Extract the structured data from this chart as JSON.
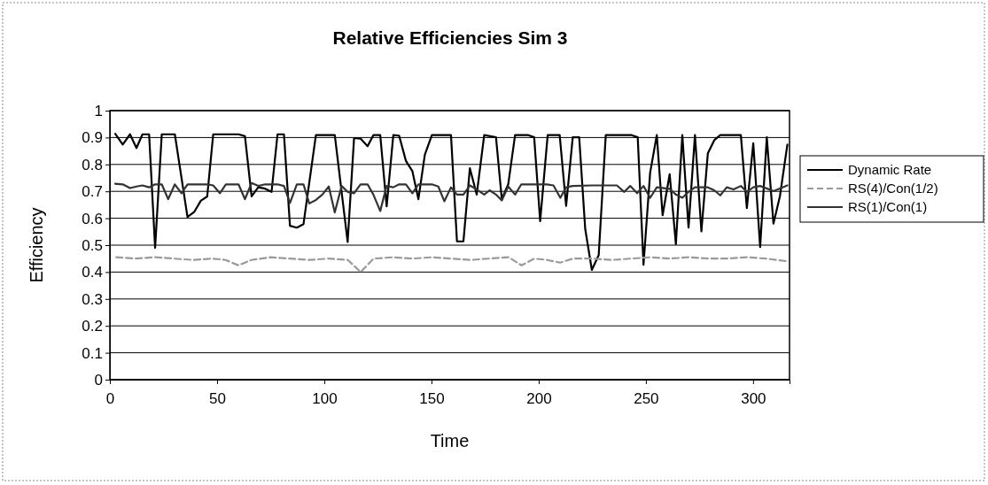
{
  "chart_data": {
    "type": "line",
    "title": "Relative Efficiencies Sim 3",
    "xlabel": "Time",
    "ylabel": "Efficiency",
    "xlim": [
      0,
      317
    ],
    "xticks": [
      0,
      50,
      100,
      150,
      200,
      250,
      300
    ],
    "ylim": [
      0,
      1
    ],
    "yticks": [
      0,
      0.1,
      0.2,
      0.3,
      0.4,
      0.5,
      0.6,
      0.7,
      0.8,
      0.9,
      1
    ],
    "grid": "y",
    "legend": "right",
    "marker": "none",
    "series": [
      {
        "name": "Dynamic Rate",
        "color": "#000000",
        "line_style": "solid",
        "x": [
          2.5,
          6.0,
          9.4,
          12.4,
          15.2,
          18.3,
          21.1,
          24.2,
          30.3,
          36.2,
          39.4,
          42.4,
          45.4,
          48.2,
          60.0,
          63.0,
          66.1,
          69.2,
          72.4,
          75.4,
          78.2,
          81.2,
          84.0,
          87.2,
          90.3,
          96.1,
          104.9,
          110.9,
          113.9,
          116.9,
          120.2,
          122.9,
          126.1,
          129.1,
          132.2,
          134.9,
          138.1,
          141.1,
          143.9,
          146.9,
          150.2,
          159.1,
          161.9,
          164.9,
          167.9,
          171.1,
          174.6,
          180.1,
          182.8,
          185.8,
          189.0,
          195.2,
          197.9,
          200.7,
          204.2,
          209.8,
          212.8,
          215.9,
          218.9,
          221.7,
          224.8,
          228.0,
          231.3,
          243.4,
          246.2,
          248.9,
          252.0,
          255.1,
          257.8,
          261.1,
          264.0,
          267.0,
          269.9,
          272.9,
          275.9,
          278.9,
          281.9,
          284.7,
          294.3,
          297.1,
          300.1,
          303.3,
          306.4,
          309.5,
          312.5,
          316.0
        ],
        "values": [
          0.914,
          0.874,
          0.912,
          0.861,
          0.912,
          0.912,
          0.49,
          0.912,
          0.912,
          0.605,
          0.624,
          0.665,
          0.681,
          0.912,
          0.912,
          0.905,
          0.681,
          0.715,
          0.71,
          0.698,
          0.912,
          0.912,
          0.572,
          0.565,
          0.578,
          0.909,
          0.909,
          0.512,
          0.898,
          0.896,
          0.868,
          0.909,
          0.909,
          0.644,
          0.909,
          0.907,
          0.813,
          0.775,
          0.671,
          0.836,
          0.909,
          0.909,
          0.514,
          0.514,
          0.786,
          0.688,
          0.909,
          0.901,
          0.671,
          0.726,
          0.909,
          0.909,
          0.901,
          0.589,
          0.909,
          0.909,
          0.646,
          0.901,
          0.901,
          0.561,
          0.408,
          0.463,
          0.909,
          0.909,
          0.901,
          0.427,
          0.77,
          0.909,
          0.611,
          0.764,
          0.504,
          0.909,
          0.565,
          0.909,
          0.551,
          0.841,
          0.89,
          0.909,
          0.909,
          0.638,
          0.879,
          0.493,
          0.901,
          0.58,
          0.681,
          0.874
        ]
      },
      {
        "name": "RS(4)/Con(1/2)",
        "color": "#9a9a9a",
        "line_style": "dashed",
        "x": [
          3,
          12,
          21,
          30,
          39,
          48,
          54,
          60,
          66,
          75,
          84,
          93,
          102,
          111,
          117,
          123,
          132,
          141,
          150,
          159,
          168,
          177,
          186,
          192,
          198,
          204,
          210,
          216,
          225,
          234,
          243,
          252,
          261,
          270,
          279,
          288,
          297,
          306,
          316
        ],
        "values": [
          0.455,
          0.45,
          0.455,
          0.45,
          0.445,
          0.45,
          0.445,
          0.425,
          0.445,
          0.455,
          0.45,
          0.445,
          0.45,
          0.445,
          0.4,
          0.45,
          0.455,
          0.45,
          0.455,
          0.45,
          0.445,
          0.45,
          0.455,
          0.425,
          0.45,
          0.445,
          0.435,
          0.45,
          0.45,
          0.445,
          0.45,
          0.455,
          0.45,
          0.455,
          0.45,
          0.45,
          0.455,
          0.45,
          0.44
        ]
      },
      {
        "name": "RS(1)/Con(1)",
        "color": "#333333",
        "line_style": "solid",
        "x": [
          2.5,
          6.0,
          9.4,
          12.4,
          15.2,
          18.3,
          21.1,
          24.2,
          27.2,
          30.3,
          33.4,
          36.2,
          45.4,
          48.2,
          51.3,
          54.1,
          60.0,
          63.0,
          66.1,
          69.2,
          72.4,
          78.2,
          81.2,
          84.0,
          87.2,
          90.3,
          93.0,
          96.1,
          99.1,
          102.1,
          104.9,
          108.1,
          110.9,
          113.9,
          116.9,
          120.2,
          122.9,
          126.1,
          129.1,
          132.2,
          134.9,
          138.1,
          141.1,
          143.9,
          146.9,
          150.2,
          153.2,
          156.0,
          159.1,
          161.9,
          164.9,
          167.9,
          171.1,
          174.6,
          177.1,
          180.1,
          182.8,
          185.8,
          189.0,
          191.9,
          197.9,
          203.9,
          206.9,
          210.1,
          212.8,
          215.9,
          224.8,
          236.5,
          239.9,
          242.7,
          245.9,
          248.9,
          252.0,
          255.1,
          261.1,
          264.0,
          267.0,
          269.9,
          272.9,
          278.9,
          281.9,
          284.7,
          287.7,
          290.9,
          294.3,
          297.1,
          300.1,
          303.3,
          309.5,
          316.0
        ],
        "values": [
          0.728,
          0.726,
          0.712,
          0.718,
          0.722,
          0.715,
          0.726,
          0.726,
          0.671,
          0.726,
          0.693,
          0.726,
          0.726,
          0.722,
          0.693,
          0.726,
          0.726,
          0.671,
          0.731,
          0.72,
          0.726,
          0.726,
          0.72,
          0.657,
          0.726,
          0.726,
          0.655,
          0.668,
          0.688,
          0.718,
          0.622,
          0.72,
          0.698,
          0.693,
          0.726,
          0.726,
          0.688,
          0.627,
          0.72,
          0.715,
          0.726,
          0.726,
          0.693,
          0.726,
          0.726,
          0.726,
          0.718,
          0.663,
          0.715,
          0.688,
          0.688,
          0.722,
          0.707,
          0.688,
          0.704,
          0.688,
          0.666,
          0.718,
          0.688,
          0.726,
          0.726,
          0.726,
          0.722,
          0.676,
          0.715,
          0.72,
          0.722,
          0.722,
          0.698,
          0.72,
          0.693,
          0.72,
          0.676,
          0.715,
          0.709,
          0.688,
          0.676,
          0.698,
          0.715,
          0.715,
          0.704,
          0.685,
          0.715,
          0.707,
          0.72,
          0.698,
          0.715,
          0.72,
          0.701,
          0.722
        ]
      }
    ]
  }
}
